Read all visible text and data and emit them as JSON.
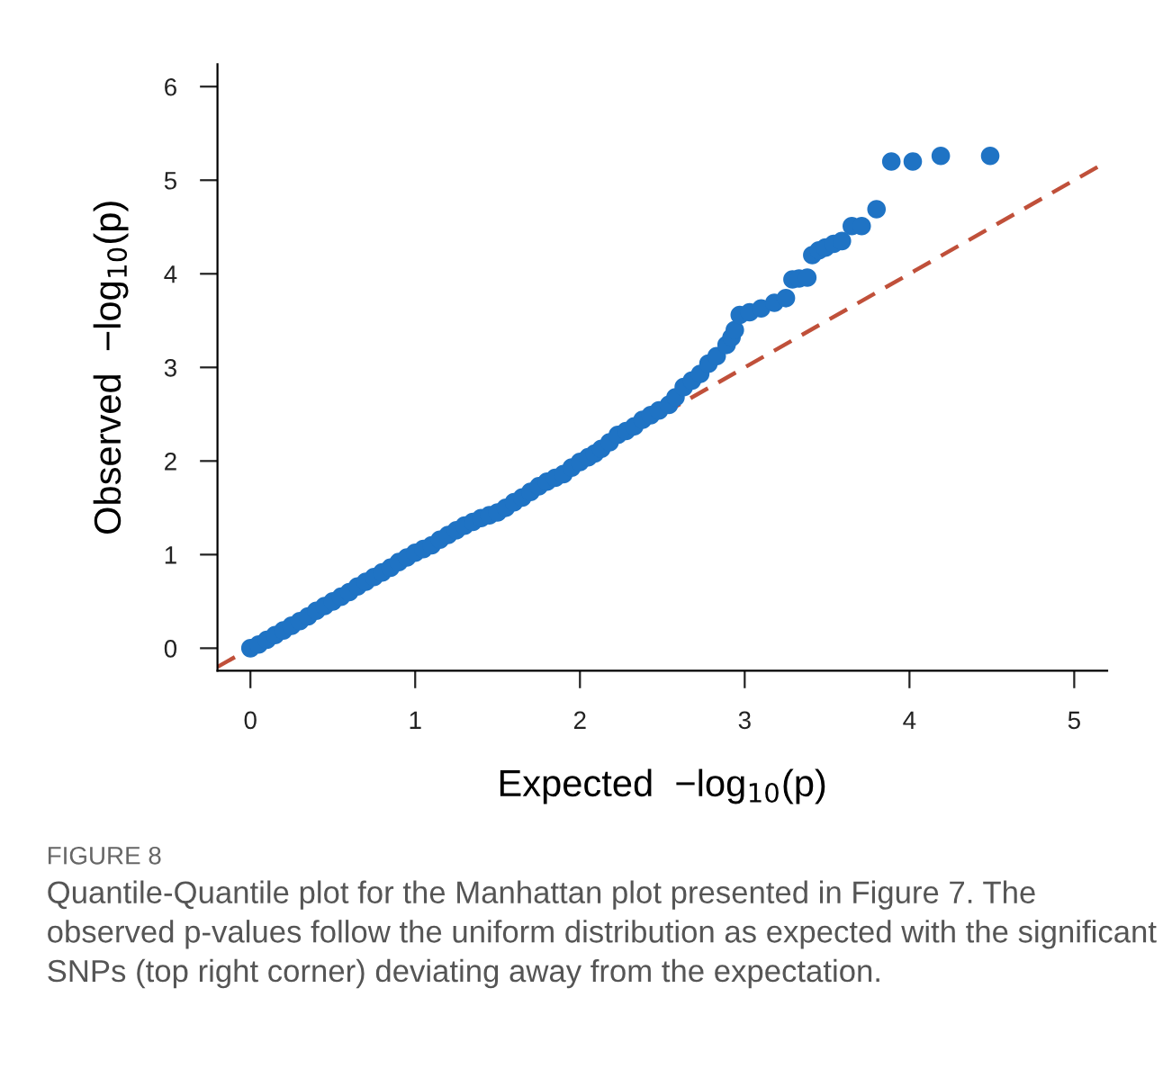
{
  "chart_data": {
    "type": "scatter",
    "xlabel": "Expected  −log$_{10}$(p)",
    "ylabel": "Observed  −log$_{10}$(p)",
    "xlim": [
      -0.2,
      5.2
    ],
    "ylim": [
      -0.24,
      6.24
    ],
    "xticks": [
      0,
      1,
      2,
      3,
      4,
      5
    ],
    "yticks": [
      0,
      1,
      2,
      3,
      4,
      5,
      6
    ],
    "grid": false,
    "marker": "circle",
    "series": [
      {
        "color": "#1f73c4",
        "x": [
          0.0,
          0.05,
          0.1,
          0.15,
          0.2,
          0.25,
          0.3,
          0.35,
          0.4,
          0.45,
          0.5,
          0.55,
          0.6,
          0.65,
          0.7,
          0.75,
          0.8,
          0.85,
          0.9,
          0.95,
          1.0,
          1.05,
          1.1,
          1.15,
          1.2,
          1.25,
          1.3,
          1.35,
          1.4,
          1.45,
          1.5,
          1.55,
          1.6,
          1.65,
          1.7,
          1.75,
          1.8,
          1.85,
          1.9,
          1.95,
          2.0,
          2.05,
          2.09,
          2.13,
          2.18,
          2.23,
          2.28,
          2.33,
          2.38,
          2.43,
          2.48,
          2.54,
          2.58,
          2.63,
          2.68,
          2.73,
          2.78,
          2.83,
          2.89,
          2.92,
          2.94,
          2.97,
          3.03,
          3.1,
          3.18,
          3.25,
          3.29,
          3.33,
          3.38,
          3.41,
          3.45,
          3.49,
          3.54,
          3.59,
          3.65,
          3.71,
          3.8,
          3.89,
          4.02,
          4.19,
          4.49
        ],
        "values": [
          0.0,
          0.04,
          0.09,
          0.14,
          0.19,
          0.24,
          0.29,
          0.34,
          0.4,
          0.45,
          0.5,
          0.55,
          0.6,
          0.66,
          0.71,
          0.76,
          0.81,
          0.86,
          0.92,
          0.97,
          1.02,
          1.06,
          1.1,
          1.16,
          1.21,
          1.26,
          1.31,
          1.35,
          1.39,
          1.42,
          1.45,
          1.5,
          1.56,
          1.61,
          1.67,
          1.73,
          1.78,
          1.82,
          1.86,
          1.93,
          1.99,
          2.04,
          2.08,
          2.13,
          2.2,
          2.28,
          2.32,
          2.37,
          2.44,
          2.49,
          2.54,
          2.6,
          2.68,
          2.79,
          2.86,
          2.93,
          3.04,
          3.12,
          3.24,
          3.32,
          3.4,
          3.56,
          3.59,
          3.63,
          3.69,
          3.74,
          3.94,
          3.95,
          3.96,
          4.2,
          4.25,
          4.28,
          4.32,
          4.35,
          4.51,
          4.51,
          4.69,
          5.2,
          5.2,
          5.26,
          5.26
        ]
      },
      {
        "color": "#c0503a",
        "type": "line",
        "line_style": "dashed",
        "marker": "none",
        "x": [
          -0.2,
          5.15
        ],
        "values": [
          -0.2,
          5.15
        ]
      }
    ],
    "annotations": [
      "FIGURE 8",
      "Quantile-Quantile plot for the Manhattan plot presented in Figure 7. The observed p-values follow the uniform distribution as expected with the significant SNPs (top right corner) deviating away from the expectation."
    ]
  }
}
